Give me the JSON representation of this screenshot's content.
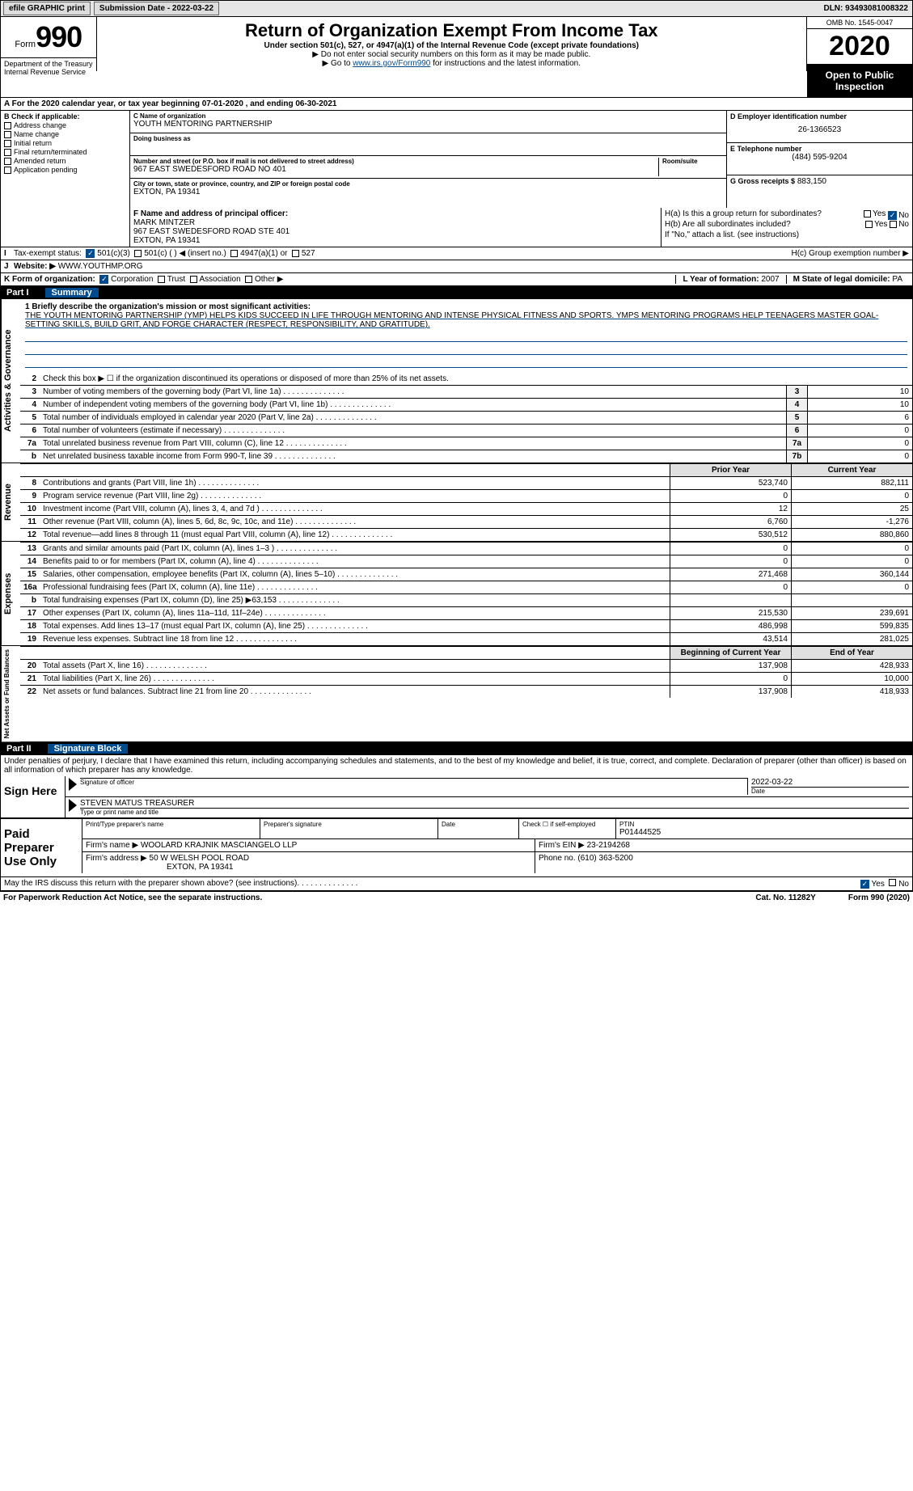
{
  "topbar": {
    "efile": "efile GRAPHIC print",
    "submission_label": "Submission Date - 2022-03-22",
    "dln": "DLN: 93493081008322"
  },
  "header": {
    "form_word": "Form",
    "form_num": "990",
    "dept": "Department of the Treasury\nInternal Revenue Service",
    "title": "Return of Organization Exempt From Income Tax",
    "subtitle": "Under section 501(c), 527, or 4947(a)(1) of the Internal Revenue Code (except private foundations)",
    "note1": "▶ Do not enter social security numbers on this form as it may be made public.",
    "note2_pre": "▶ Go to ",
    "note2_link": "www.irs.gov/Form990",
    "note2_post": " for instructions and the latest information.",
    "omb": "OMB No. 1545-0047",
    "year": "2020",
    "open": "Open to Public Inspection"
  },
  "period": "For the 2020 calendar year, or tax year beginning 07-01-2020  , and ending 06-30-2021",
  "boxB": {
    "title": "B Check if applicable:",
    "items": [
      "Address change",
      "Name change",
      "Initial return",
      "Final return/terminated",
      "Amended return",
      "Application pending"
    ],
    "pending_marker": "G"
  },
  "boxC": {
    "label": "C Name of organization",
    "name": "YOUTH MENTORING PARTNERSHIP",
    "dba_label": "Doing business as",
    "street_label": "Number and street (or P.O. box if mail is not delivered to street address)",
    "room_label": "Room/suite",
    "street": "967 EAST SWEDESFORD ROAD NO 401",
    "city_label": "City or town, state or province, country, and ZIP or foreign postal code",
    "city": "EXTON, PA  19341"
  },
  "boxD": {
    "label": "D Employer identification number",
    "value": "26-1366523"
  },
  "boxE": {
    "label": "E Telephone number",
    "value": "(484) 595-9204"
  },
  "boxG": {
    "label": "G Gross receipts $",
    "value": "883,150"
  },
  "boxF": {
    "label": "F Name and address of principal officer:",
    "name": "MARK MINTZER",
    "addr1": "967 EAST SWEDESFORD ROAD STE 401",
    "addr2": "EXTON, PA  19341"
  },
  "boxH": {
    "a": "H(a)  Is this a group return for subordinates?",
    "b": "H(b)  Are all subordinates included?",
    "note": "If \"No,\" attach a list. (see instructions)",
    "c": "H(c)  Group exemption number ▶",
    "yes": "Yes",
    "no": "No"
  },
  "boxI": {
    "label": "Tax-exempt status:",
    "opt1": "501(c)(3)",
    "opt2": "501(c) (  ) ◀ (insert no.)",
    "opt3": "4947(a)(1) or",
    "opt4": "527"
  },
  "boxJ": {
    "label": "Website: ▶",
    "value": "WWW.YOUTHMP.ORG"
  },
  "boxK": {
    "label": "K Form of organization:",
    "opts": [
      "Corporation",
      "Trust",
      "Association",
      "Other ▶"
    ]
  },
  "boxL": {
    "label": "L Year of formation:",
    "value": "2007"
  },
  "boxM": {
    "label": "M State of legal domicile:",
    "value": "PA"
  },
  "part1": {
    "num": "Part I",
    "title": "Summary",
    "line1_label": "1  Briefly describe the organization's mission or most significant activities:",
    "mission": "THE YOUTH MENTORING PARTNERSHIP (YMP) HELPS KIDS SUCCEED IN LIFE THROUGH MENTORING AND INTENSE PHYSICAL FITNESS AND SPORTS. YMPS MENTORING PROGRAMS HELP TEENAGERS MASTER GOAL-SETTING SKILLS, BUILD GRIT, AND FORGE CHARACTER (RESPECT, RESPONSIBILITY, AND GRATITUDE).",
    "line2": "Check this box ▶ ☐ if the organization discontinued its operations or disposed of more than 25% of its net assets.",
    "rows_a": [
      {
        "n": "3",
        "label": "Number of voting members of the governing body (Part VI, line 1a)",
        "box": "3",
        "val": "10"
      },
      {
        "n": "4",
        "label": "Number of independent voting members of the governing body (Part VI, line 1b)",
        "box": "4",
        "val": "10"
      },
      {
        "n": "5",
        "label": "Total number of individuals employed in calendar year 2020 (Part V, line 2a)",
        "box": "5",
        "val": "6"
      },
      {
        "n": "6",
        "label": "Total number of volunteers (estimate if necessary)",
        "box": "6",
        "val": "0"
      },
      {
        "n": "7a",
        "label": "Total unrelated business revenue from Part VIII, column (C), line 12",
        "box": "7a",
        "val": "0"
      },
      {
        "n": "b",
        "label": "Net unrelated business taxable income from Form 990-T, line 39",
        "box": "7b",
        "val": "0"
      }
    ],
    "hdr_prior": "Prior Year",
    "hdr_current": "Current Year",
    "rows_rev": [
      {
        "n": "8",
        "label": "Contributions and grants (Part VIII, line 1h)",
        "p": "523,740",
        "c": "882,111"
      },
      {
        "n": "9",
        "label": "Program service revenue (Part VIII, line 2g)",
        "p": "0",
        "c": "0"
      },
      {
        "n": "10",
        "label": "Investment income (Part VIII, column (A), lines 3, 4, and 7d )",
        "p": "12",
        "c": "25"
      },
      {
        "n": "11",
        "label": "Other revenue (Part VIII, column (A), lines 5, 6d, 8c, 9c, 10c, and 11e)",
        "p": "6,760",
        "c": "-1,276"
      },
      {
        "n": "12",
        "label": "Total revenue—add lines 8 through 11 (must equal Part VIII, column (A), line 12)",
        "p": "530,512",
        "c": "880,860"
      }
    ],
    "rows_exp": [
      {
        "n": "13",
        "label": "Grants and similar amounts paid (Part IX, column (A), lines 1–3 )",
        "p": "0",
        "c": "0"
      },
      {
        "n": "14",
        "label": "Benefits paid to or for members (Part IX, column (A), line 4)",
        "p": "0",
        "c": "0"
      },
      {
        "n": "15",
        "label": "Salaries, other compensation, employee benefits (Part IX, column (A), lines 5–10)",
        "p": "271,468",
        "c": "360,144"
      },
      {
        "n": "16a",
        "label": "Professional fundraising fees (Part IX, column (A), line 11e)",
        "p": "0",
        "c": "0"
      },
      {
        "n": "b",
        "label": "Total fundraising expenses (Part IX, column (D), line 25) ▶63,153",
        "p": "",
        "c": ""
      },
      {
        "n": "17",
        "label": "Other expenses (Part IX, column (A), lines 11a–11d, 11f–24e)",
        "p": "215,530",
        "c": "239,691"
      },
      {
        "n": "18",
        "label": "Total expenses. Add lines 13–17 (must equal Part IX, column (A), line 25)",
        "p": "486,998",
        "c": "599,835"
      },
      {
        "n": "19",
        "label": "Revenue less expenses. Subtract line 18 from line 12",
        "p": "43,514",
        "c": "281,025"
      }
    ],
    "hdr_beg": "Beginning of Current Year",
    "hdr_end": "End of Year",
    "rows_net": [
      {
        "n": "20",
        "label": "Total assets (Part X, line 16)",
        "p": "137,908",
        "c": "428,933"
      },
      {
        "n": "21",
        "label": "Total liabilities (Part X, line 26)",
        "p": "0",
        "c": "10,000"
      },
      {
        "n": "22",
        "label": "Net assets or fund balances. Subtract line 21 from line 20",
        "p": "137,908",
        "c": "418,933"
      }
    ],
    "vtab_ag": "Activities & Governance",
    "vtab_rev": "Revenue",
    "vtab_exp": "Expenses",
    "vtab_net": "Net Assets or Fund Balances"
  },
  "part2": {
    "num": "Part II",
    "title": "Signature Block",
    "decl": "Under penalties of perjury, I declare that I have examined this return, including accompanying schedules and statements, and to the best of my knowledge and belief, it is true, correct, and complete. Declaration of preparer (other than officer) is based on all information of which preparer has any knowledge.",
    "sign_here": "Sign Here",
    "sig_officer": "Signature of officer",
    "sig_date_label": "Date",
    "sig_date": "2022-03-22",
    "sig_name_label": "Type or print name and title",
    "sig_name": "STEVEN MATUS TREASURER",
    "paid": "Paid Preparer Use Only",
    "prep_name_label": "Print/Type preparer's name",
    "prep_sig_label": "Preparer's signature",
    "prep_date_label": "Date",
    "prep_check": "Check ☐ if self-employed",
    "ptin_label": "PTIN",
    "ptin": "P01444525",
    "firm_name_label": "Firm's name    ▶",
    "firm_name": "WOOLARD KRAJNIK MASCIANGELO LLP",
    "firm_ein_label": "Firm's EIN ▶",
    "firm_ein": "23-2194268",
    "firm_addr_label": "Firm's address ▶",
    "firm_addr1": "50 W WELSH POOL ROAD",
    "firm_addr2": "EXTON, PA  19341",
    "phone_label": "Phone no.",
    "phone": "(610) 363-5200",
    "discuss": "May the IRS discuss this return with the preparer shown above? (see instructions)",
    "yes": "Yes",
    "no": "No"
  },
  "footer": {
    "pra": "For Paperwork Reduction Act Notice, see the separate instructions.",
    "cat": "Cat. No. 11282Y",
    "form": "Form 990 (2020)"
  }
}
